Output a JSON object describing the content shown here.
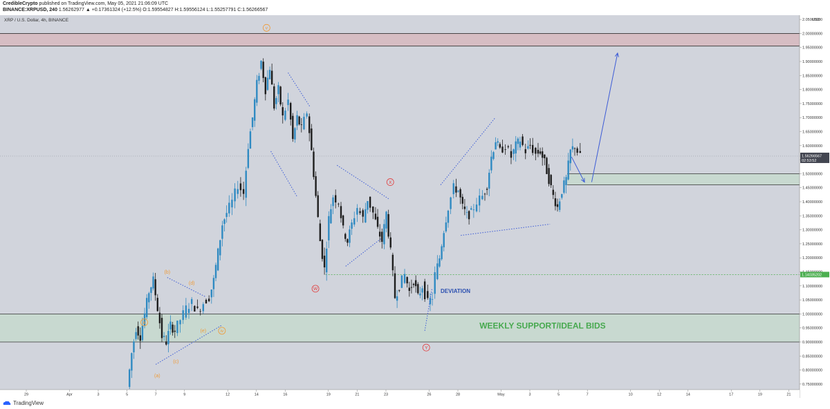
{
  "header": {
    "publisher": "CredibleCrypto",
    "published_text": "published on TradingView.com, May 05, 2021 21:06:09 UTC",
    "ticker_line": "BINANCE:XRPUSD, 240",
    "ticker_values": "1.56262977 ▲ +0.17361324 (+12.5%) O:1.59554827 H:1.59556124 L:1.55257791 C:1.56266567"
  },
  "chart_title": "XRP / U.S. Dollar, 4h, BINANCE",
  "footer": {
    "brand": "TradingView"
  },
  "colors": {
    "background": "#d1d4dc",
    "up_candle": "#2f8ac2",
    "down_candle": "#1e1e1e",
    "resistance_zone": "#d6bac0",
    "support_zone": "#c6d9ce",
    "wave_orange": "#f09a35",
    "wave_red": "#e23b3b",
    "projection": "#3c5bd6",
    "label_green": "#47a94f",
    "price_box": "#434651"
  },
  "chart_data": {
    "type": "candlestick",
    "title": "XRP / U.S. Dollar, 4h, BINANCE",
    "y_axis": {
      "unit": "USD",
      "range": [
        0.73,
        2.07
      ],
      "ticks": [
        "2.05000000",
        "2.00000000",
        "1.95000000",
        "1.90000000",
        "1.85000000",
        "1.80000000",
        "1.75000000",
        "1.70000000",
        "1.65000000",
        "1.60000000",
        "1.55000000",
        "1.50000000",
        "1.45000000",
        "1.40000000",
        "1.35000000",
        "1.30000000",
        "1.25000000",
        "1.20000000",
        "1.15000000",
        "1.10000000",
        "1.05000000",
        "1.00000000",
        "0.95000000",
        "0.90000000",
        "0.85000000",
        "0.80000000",
        "0.75000000"
      ]
    },
    "x_axis": {
      "ticks": [
        {
          "label": "29",
          "day": 0
        },
        {
          "label": "Apr",
          "day": 3
        },
        {
          "label": "3",
          "day": 5
        },
        {
          "label": "5",
          "day": 7
        },
        {
          "label": "7",
          "day": 9
        },
        {
          "label": "9",
          "day": 11
        },
        {
          "label": "12",
          "day": 14
        },
        {
          "label": "14",
          "day": 16
        },
        {
          "label": "16",
          "day": 18
        },
        {
          "label": "19",
          "day": 21
        },
        {
          "label": "21",
          "day": 23
        },
        {
          "label": "23",
          "day": 25
        },
        {
          "label": "26",
          "day": 28
        },
        {
          "label": "28",
          "day": 30
        },
        {
          "label": "May",
          "day": 33
        },
        {
          "label": "3",
          "day": 35
        },
        {
          "label": "5",
          "day": 37
        },
        {
          "label": "7",
          "day": 39
        },
        {
          "label": "10",
          "day": 42
        },
        {
          "label": "12",
          "day": 44
        },
        {
          "label": "14",
          "day": 46
        },
        {
          "label": "17",
          "day": 49
        },
        {
          "label": "19",
          "day": 51
        },
        {
          "label": "21",
          "day": 53
        }
      ]
    },
    "price_path": [
      [
        7.1,
        0.74
      ],
      [
        7.4,
        0.86
      ],
      [
        7.7,
        0.95
      ],
      [
        8.0,
        0.92
      ],
      [
        8.3,
        1.0
      ],
      [
        8.6,
        1.08
      ],
      [
        8.9,
        1.12
      ],
      [
        9.2,
        1.02
      ],
      [
        9.5,
        0.92
      ],
      [
        9.8,
        0.9
      ],
      [
        10.1,
        0.96
      ],
      [
        10.4,
        0.94
      ],
      [
        10.8,
        0.98
      ],
      [
        11.2,
        1.02
      ],
      [
        11.6,
        1.04
      ],
      [
        12.0,
        1.01
      ],
      [
        12.4,
        1.04
      ],
      [
        12.8,
        1.06
      ],
      [
        13.1,
        1.12
      ],
      [
        13.4,
        1.22
      ],
      [
        13.7,
        1.32
      ],
      [
        14.0,
        1.36
      ],
      [
        14.4,
        1.4
      ],
      [
        14.8,
        1.46
      ],
      [
        15.2,
        1.43
      ],
      [
        15.5,
        1.6
      ],
      [
        15.8,
        1.7
      ],
      [
        16.1,
        1.82
      ],
      [
        16.4,
        1.9
      ],
      [
        16.7,
        1.8
      ],
      [
        17.0,
        1.88
      ],
      [
        17.3,
        1.74
      ],
      [
        17.6,
        1.8
      ],
      [
        17.9,
        1.7
      ],
      [
        18.3,
        1.76
      ],
      [
        18.6,
        1.62
      ],
      [
        18.9,
        1.7
      ],
      [
        19.2,
        1.66
      ],
      [
        19.6,
        1.72
      ],
      [
        19.9,
        1.58
      ],
      [
        20.2,
        1.42
      ],
      [
        20.5,
        1.26
      ],
      [
        20.8,
        1.16
      ],
      [
        21.1,
        1.34
      ],
      [
        21.4,
        1.42
      ],
      [
        21.8,
        1.4
      ],
      [
        22.1,
        1.3
      ],
      [
        22.4,
        1.26
      ],
      [
        22.7,
        1.32
      ],
      [
        23.1,
        1.38
      ],
      [
        23.5,
        1.34
      ],
      [
        23.8,
        1.41
      ],
      [
        24.2,
        1.36
      ],
      [
        24.5,
        1.3
      ],
      [
        24.8,
        1.26
      ],
      [
        25.1,
        1.36
      ],
      [
        25.4,
        1.22
      ],
      [
        25.7,
        1.06
      ],
      [
        26.0,
        1.1
      ],
      [
        26.4,
        1.14
      ],
      [
        26.7,
        1.08
      ],
      [
        27.0,
        1.12
      ],
      [
        27.3,
        1.06
      ],
      [
        27.6,
        1.1
      ],
      [
        28.0,
        1.04
      ],
      [
        28.3,
        1.06
      ],
      [
        28.5,
        1.14
      ],
      [
        28.8,
        1.2
      ],
      [
        29.1,
        1.3
      ],
      [
        29.4,
        1.38
      ],
      [
        29.8,
        1.45
      ],
      [
        30.1,
        1.44
      ],
      [
        30.4,
        1.38
      ],
      [
        30.7,
        1.35
      ],
      [
        31.0,
        1.36
      ],
      [
        31.4,
        1.4
      ],
      [
        31.8,
        1.42
      ],
      [
        32.1,
        1.46
      ],
      [
        32.4,
        1.56
      ],
      [
        32.7,
        1.62
      ],
      [
        33.0,
        1.58
      ],
      [
        33.4,
        1.6
      ],
      [
        33.8,
        1.56
      ],
      [
        34.1,
        1.6
      ],
      [
        34.4,
        1.62
      ],
      [
        34.8,
        1.58
      ],
      [
        35.1,
        1.6
      ],
      [
        35.5,
        1.57
      ],
      [
        35.8,
        1.58
      ],
      [
        36.1,
        1.54
      ],
      [
        36.4,
        1.48
      ],
      [
        36.7,
        1.42
      ],
      [
        37.0,
        1.38
      ],
      [
        37.3,
        1.44
      ],
      [
        37.6,
        1.48
      ],
      [
        37.9,
        1.58
      ],
      [
        38.2,
        1.6
      ],
      [
        38.6,
        1.56
      ]
    ],
    "horizontal_lines": [
      {
        "price": 2.0,
        "start_day": -3
      },
      {
        "price": 1.955,
        "start_day": -3
      },
      {
        "price": 1.5,
        "start_day": 37.6
      },
      {
        "price": 1.46,
        "start_day": 37.6
      },
      {
        "price": 1.0,
        "start_day": -3
      },
      {
        "price": 0.9,
        "start_day": -3
      }
    ],
    "zones": [
      {
        "name": "resistance",
        "low": 1.955,
        "high": 2.0,
        "start_day": -3
      },
      {
        "name": "support",
        "low": 0.9,
        "high": 1.0,
        "start_day": -3
      },
      {
        "name": "retest",
        "low": 1.46,
        "high": 1.5,
        "start_day": 37.6
      }
    ],
    "dotted_level": {
      "price": 1.14035202,
      "start_day": 20.8
    },
    "current_price": {
      "price": 1.56266567,
      "label": "1.56266567",
      "countdown": "02:53:52"
    },
    "level_label": {
      "price": 1.14035202,
      "label": "1.14035202"
    },
    "annotations": [
      {
        "text": "v",
        "day": 16.7,
        "price": 2.02,
        "color": "orange",
        "circled": true
      },
      {
        "text": "iii",
        "day": 8.2,
        "price": 0.97,
        "color": "orange",
        "circled": true
      },
      {
        "text": "iv",
        "day": 13.6,
        "price": 0.94,
        "color": "orange",
        "circled": true
      },
      {
        "text": "(a)",
        "day": 9.1,
        "price": 0.78,
        "color": "orange",
        "circled": false
      },
      {
        "text": "(b)",
        "day": 9.8,
        "price": 1.15,
        "color": "orange",
        "circled": false
      },
      {
        "text": "(c)",
        "day": 10.4,
        "price": 0.83,
        "color": "orange",
        "circled": false
      },
      {
        "text": "(d)",
        "day": 11.5,
        "price": 1.11,
        "color": "orange",
        "circled": false
      },
      {
        "text": "(e)",
        "day": 12.3,
        "price": 0.94,
        "color": "orange",
        "circled": false
      },
      {
        "text": "X",
        "day": 25.3,
        "price": 1.47,
        "color": "red",
        "circled": true
      },
      {
        "text": "W",
        "day": 20.1,
        "price": 1.09,
        "color": "red",
        "circled": true
      },
      {
        "text": "Y",
        "day": 27.8,
        "price": 0.88,
        "color": "red",
        "circled": true
      }
    ],
    "text_labels": [
      {
        "text": "DEVIATION",
        "day": 28.8,
        "price": 1.075,
        "color": "blue"
      },
      {
        "text": "WEEKLY SUPPORT/IDEAL BIDS",
        "day": 31.5,
        "price": 0.948,
        "color": "green"
      }
    ],
    "dotted_trendlines": [
      [
        [
          9.0,
          0.82
        ],
        [
          13.6,
          0.96
        ]
      ],
      [
        [
          9.8,
          1.13
        ],
        [
          12.5,
          1.06
        ]
      ],
      [
        [
          17.0,
          1.58
        ],
        [
          18.8,
          1.42
        ]
      ],
      [
        [
          18.2,
          1.86
        ],
        [
          19.7,
          1.74
        ]
      ],
      [
        [
          21.6,
          1.53
        ],
        [
          25.2,
          1.41
        ]
      ],
      [
        [
          22.2,
          1.17
        ],
        [
          24.7,
          1.27
        ]
      ],
      [
        [
          28.8,
          1.46
        ],
        [
          32.6,
          1.7
        ]
      ],
      [
        [
          30.2,
          1.28
        ],
        [
          36.4,
          1.32
        ]
      ],
      [
        [
          27.7,
          0.94
        ],
        [
          28.2,
          1.09
        ]
      ]
    ],
    "projection_arrows": [
      [
        [
          37.9,
          1.56
        ],
        [
          38.8,
          1.47
        ]
      ],
      [
        [
          39.3,
          1.47
        ],
        [
          41.1,
          1.93
        ]
      ]
    ]
  }
}
